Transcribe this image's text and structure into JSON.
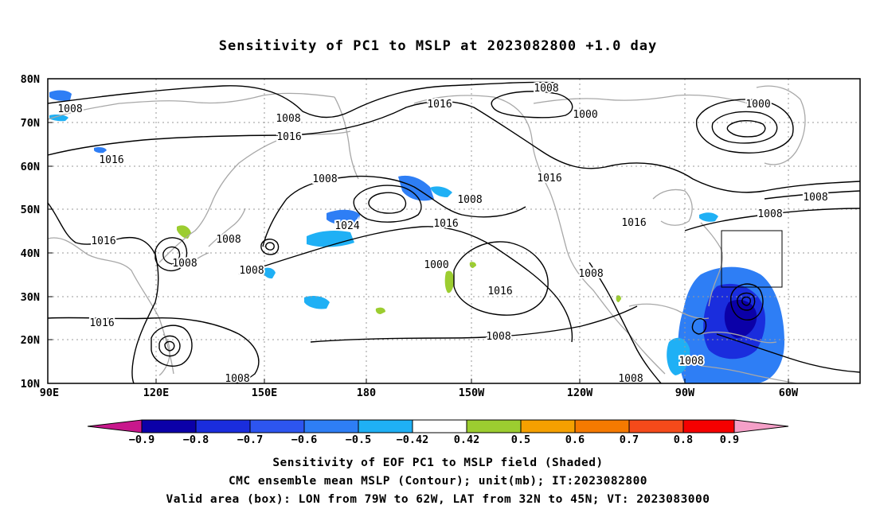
{
  "title": "Sensitivity of PC1 to MSLP at 2023082800 +1.0 day",
  "lat_ticks": [
    "80N",
    "70N",
    "60N",
    "50N",
    "40N",
    "30N",
    "20N",
    "10N"
  ],
  "lon_ticks": [
    "90E",
    "120E",
    "150E",
    "180",
    "150W",
    "120W",
    "90W",
    "60W"
  ],
  "contour_labels": [
    "1008",
    "1000",
    "1016",
    "1008",
    "1016",
    "1008",
    "1000",
    "1008",
    "1016",
    "1008",
    "1016",
    "1008",
    "1016",
    "1016",
    "1008",
    "1024",
    "1016",
    "1008",
    "1008",
    "1008",
    "1000",
    "1008",
    "1016",
    "1016",
    "1008",
    "1008"
  ],
  "colorbar": {
    "ticks": [
      "−0.9",
      "−0.8",
      "−0.7",
      "−0.6",
      "−0.5",
      "−0.42",
      "0.42",
      "0.5",
      "0.6",
      "0.7",
      "0.8",
      "0.9"
    ],
    "colors": [
      "#0b00a8",
      "#1a2ddd",
      "#2d55f0",
      "#2e7ef5",
      "#1fb0f5",
      "#ffffff",
      "#9ccd30",
      "#f5a000",
      "#f57a00",
      "#f54a1a",
      "#f50000"
    ],
    "low_color": "#c8188c",
    "high_color": "#f5a0c8"
  },
  "caption": {
    "line1": "Sensitivity of EOF PC1 to MSLP field (Shaded)",
    "line2": "CMC ensemble mean MSLP (Contour); unit(mb); IT:2023082800",
    "line3": "Valid area (box): LON from 79W to 62W, LAT from 32N to 45N; VT: 2023083000"
  }
}
